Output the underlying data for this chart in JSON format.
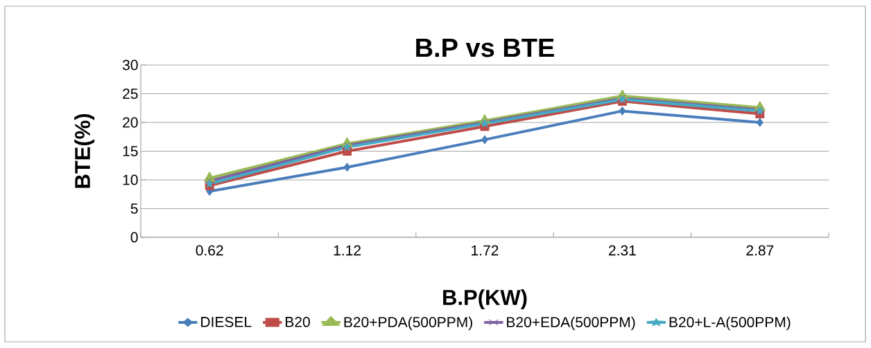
{
  "chart_data": {
    "type": "line",
    "title": "B.P vs BTE",
    "xlabel": "B.P(KW)",
    "ylabel": "BTE(%)",
    "categories": [
      "0.62",
      "1.12",
      "1.72",
      "2.31",
      "2.87"
    ],
    "ylim": [
      0,
      30
    ],
    "yticks": [
      0,
      5,
      10,
      15,
      20,
      25,
      30
    ],
    "grid": "y",
    "legend": "bottom",
    "line_style": "solid",
    "series": [
      {
        "name": "DIESEL",
        "color": "#4a7ebb",
        "marker": "diamond",
        "values": [
          8,
          12.2,
          17,
          22,
          20
        ]
      },
      {
        "name": "B20",
        "color": "#be4b48",
        "marker": "square",
        "values": [
          9,
          15,
          19.3,
          23.7,
          21.5
        ]
      },
      {
        "name": "B20+PDA(500PPM)",
        "color": "#98b954",
        "marker": "triangle",
        "values": [
          10.3,
          16.3,
          20.3,
          24.6,
          22.6
        ]
      },
      {
        "name": "B20+EDA(500PPM)",
        "color": "#7d60a0",
        "marker": "cross",
        "values": [
          9.8,
          16,
          20,
          24.2,
          22.2
        ]
      },
      {
        "name": "B20+L-A(500PPM)",
        "color": "#46aac5",
        "marker": "star",
        "values": [
          9.3,
          15.7,
          19.8,
          24,
          22
        ]
      }
    ]
  }
}
